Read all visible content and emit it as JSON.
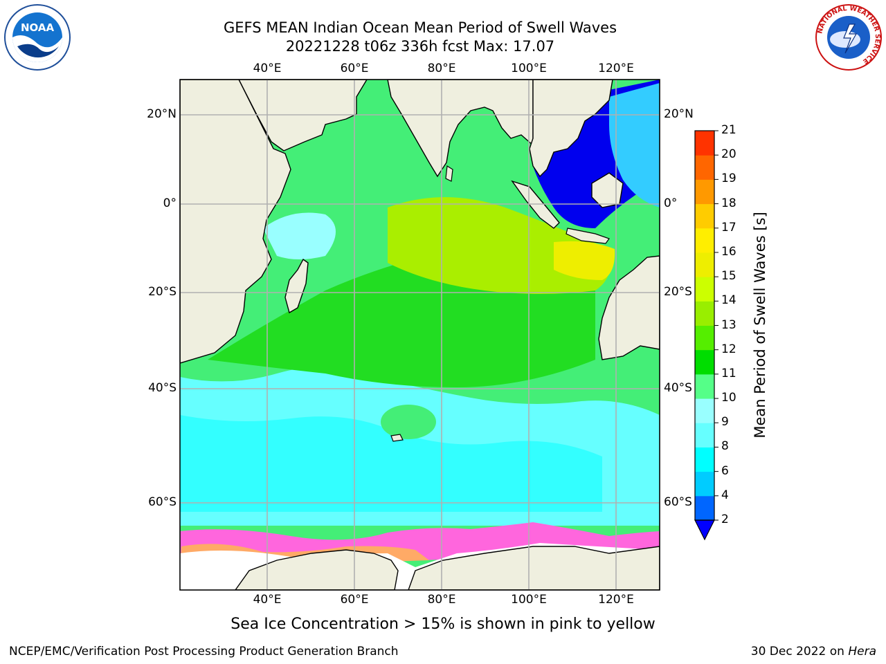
{
  "title_line1": "GEFS MEAN Indian Ocean Mean Period of Swell Waves",
  "title_line2": "20221228 t06z 336h fcst   Max: 17.07",
  "caption": "Sea Ice Concentration > 15% is shown in pink to yellow",
  "credit": "NCEP/EMC/Verification Post Processing Product Generation Branch",
  "date_prefix": "30 Dec 2022 on",
  "date_host": "Hera",
  "logos": {
    "noaa": "NOAA",
    "nws_ring": "NATIONAL WEATHER SERVICE"
  },
  "lon_labels": [
    "40°E",
    "60°E",
    "80°E",
    "100°E",
    "120°E"
  ],
  "lat_labels_left": [
    "20°N",
    "0°",
    "20°S",
    "40°S",
    "60°S"
  ],
  "lat_labels_right": [
    "20°N",
    "0°",
    "20°S",
    "40°S",
    "60°S"
  ],
  "colorbar": {
    "label": "Mean Period of Swell Waves [s]",
    "ticks": [
      "2",
      "4",
      "6",
      "8",
      "9",
      "10",
      "11",
      "12",
      "13",
      "14",
      "15",
      "16",
      "17",
      "18",
      "19",
      "20",
      "21"
    ],
    "colors": [
      "#0066ff",
      "#00ccff",
      "#00ffff",
      "#66ffff",
      "#99ffff",
      "#55ff88",
      "#00dd00",
      "#55ee00",
      "#99ee00",
      "#ccff00",
      "#eeee00",
      "#ffee00",
      "#ffcc00",
      "#ff9900",
      "#ff6600",
      "#ff3300"
    ],
    "under_color": "#0000ff"
  },
  "colors": {
    "land": "#efefdf",
    "ice_edge_white": "#ffffff",
    "ice_pink": "#ff66dd",
    "ice_orange": "#ffaa66",
    "grid": "#b0b0b0"
  }
}
